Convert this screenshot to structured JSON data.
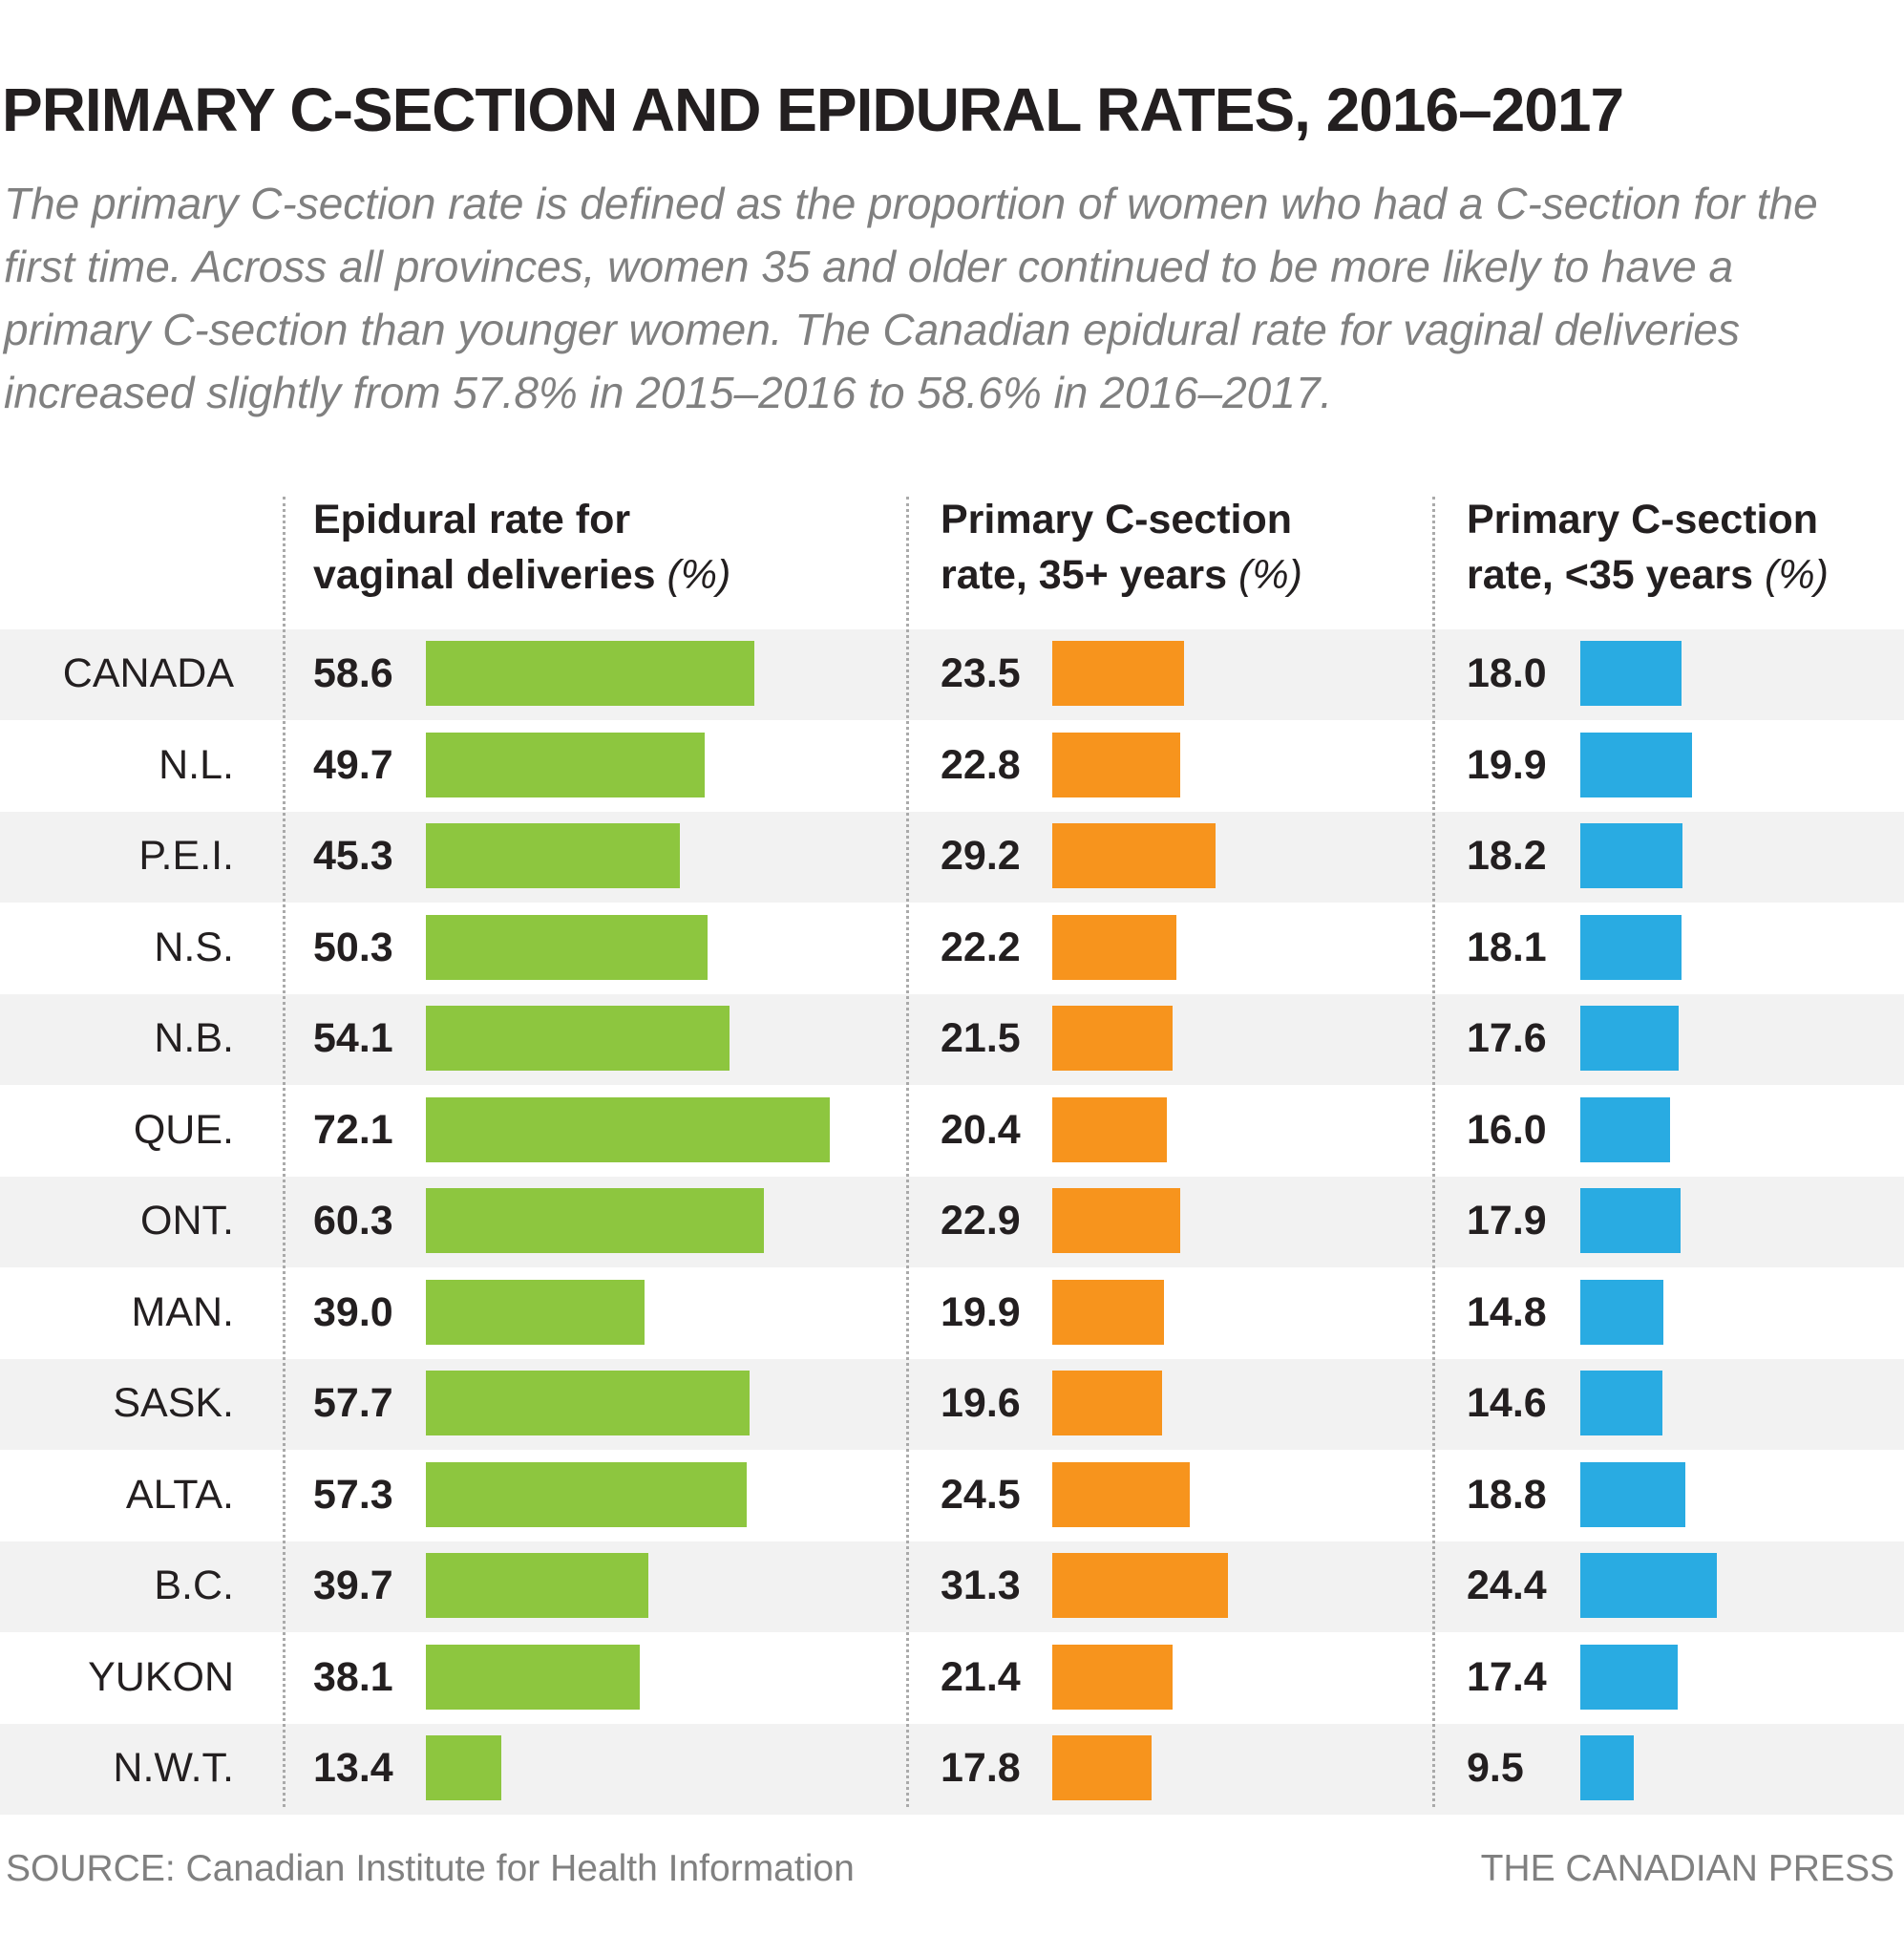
{
  "title": "PRIMARY C-SECTION AND EPIDURAL RATES, 2016–2017",
  "subtitle": "The primary C-section rate is defined as the proportion of women who had a C-section for the first time. Across all provinces, women 35 and older continued to be more likely to have a primary C-section than younger women. The Canadian epidural rate for vaginal deliveries increased slightly from 57.8% in 2015–2016 to 58.6% in 2016–2017.",
  "footer": {
    "source": "SOURCE:  Canadian Institute for Health Information",
    "credit": "THE CANADIAN PRESS"
  },
  "chart_data": {
    "type": "bar",
    "orientation": "horizontal",
    "categories": [
      "CANADA",
      "N.L.",
      "P.E.I.",
      "N.S.",
      "N.B.",
      "QUE.",
      "ONT.",
      "MAN.",
      "SASK.",
      "ALTA.",
      "B.C.",
      "YUKON",
      "N.W.T."
    ],
    "series": [
      {
        "name": "Epidural rate for vaginal deliveries",
        "unit": "(%)",
        "color": "#8dc63f",
        "values": [
          58.6,
          49.7,
          45.3,
          50.3,
          54.1,
          72.1,
          60.3,
          39.0,
          57.7,
          57.3,
          39.7,
          38.1,
          13.4
        ]
      },
      {
        "name": "Primary C-section rate, 35+ years",
        "unit": "(%)",
        "color": "#f7941d",
        "values": [
          23.5,
          22.8,
          29.2,
          22.2,
          21.5,
          20.4,
          22.9,
          19.9,
          19.6,
          24.5,
          31.3,
          21.4,
          17.8
        ]
      },
      {
        "name": "Primary C-section rate, <35 years",
        "unit": "(%)",
        "color": "#29abe2",
        "values": [
          18.0,
          19.9,
          18.2,
          18.1,
          17.6,
          16.0,
          17.9,
          14.8,
          14.6,
          18.8,
          24.4,
          17.4,
          9.5
        ]
      }
    ],
    "headers": [
      {
        "line1": "Epidural rate for",
        "line2": "vaginal deliveries ",
        "unit": "(%)"
      },
      {
        "line1": "Primary C-section",
        "line2": "rate, 35+ years ",
        "unit": "(%)"
      },
      {
        "line1": "Primary C-section",
        "line2": "rate, <35 years ",
        "unit": "(%)"
      }
    ],
    "row_shading": "alternating light gray"
  }
}
